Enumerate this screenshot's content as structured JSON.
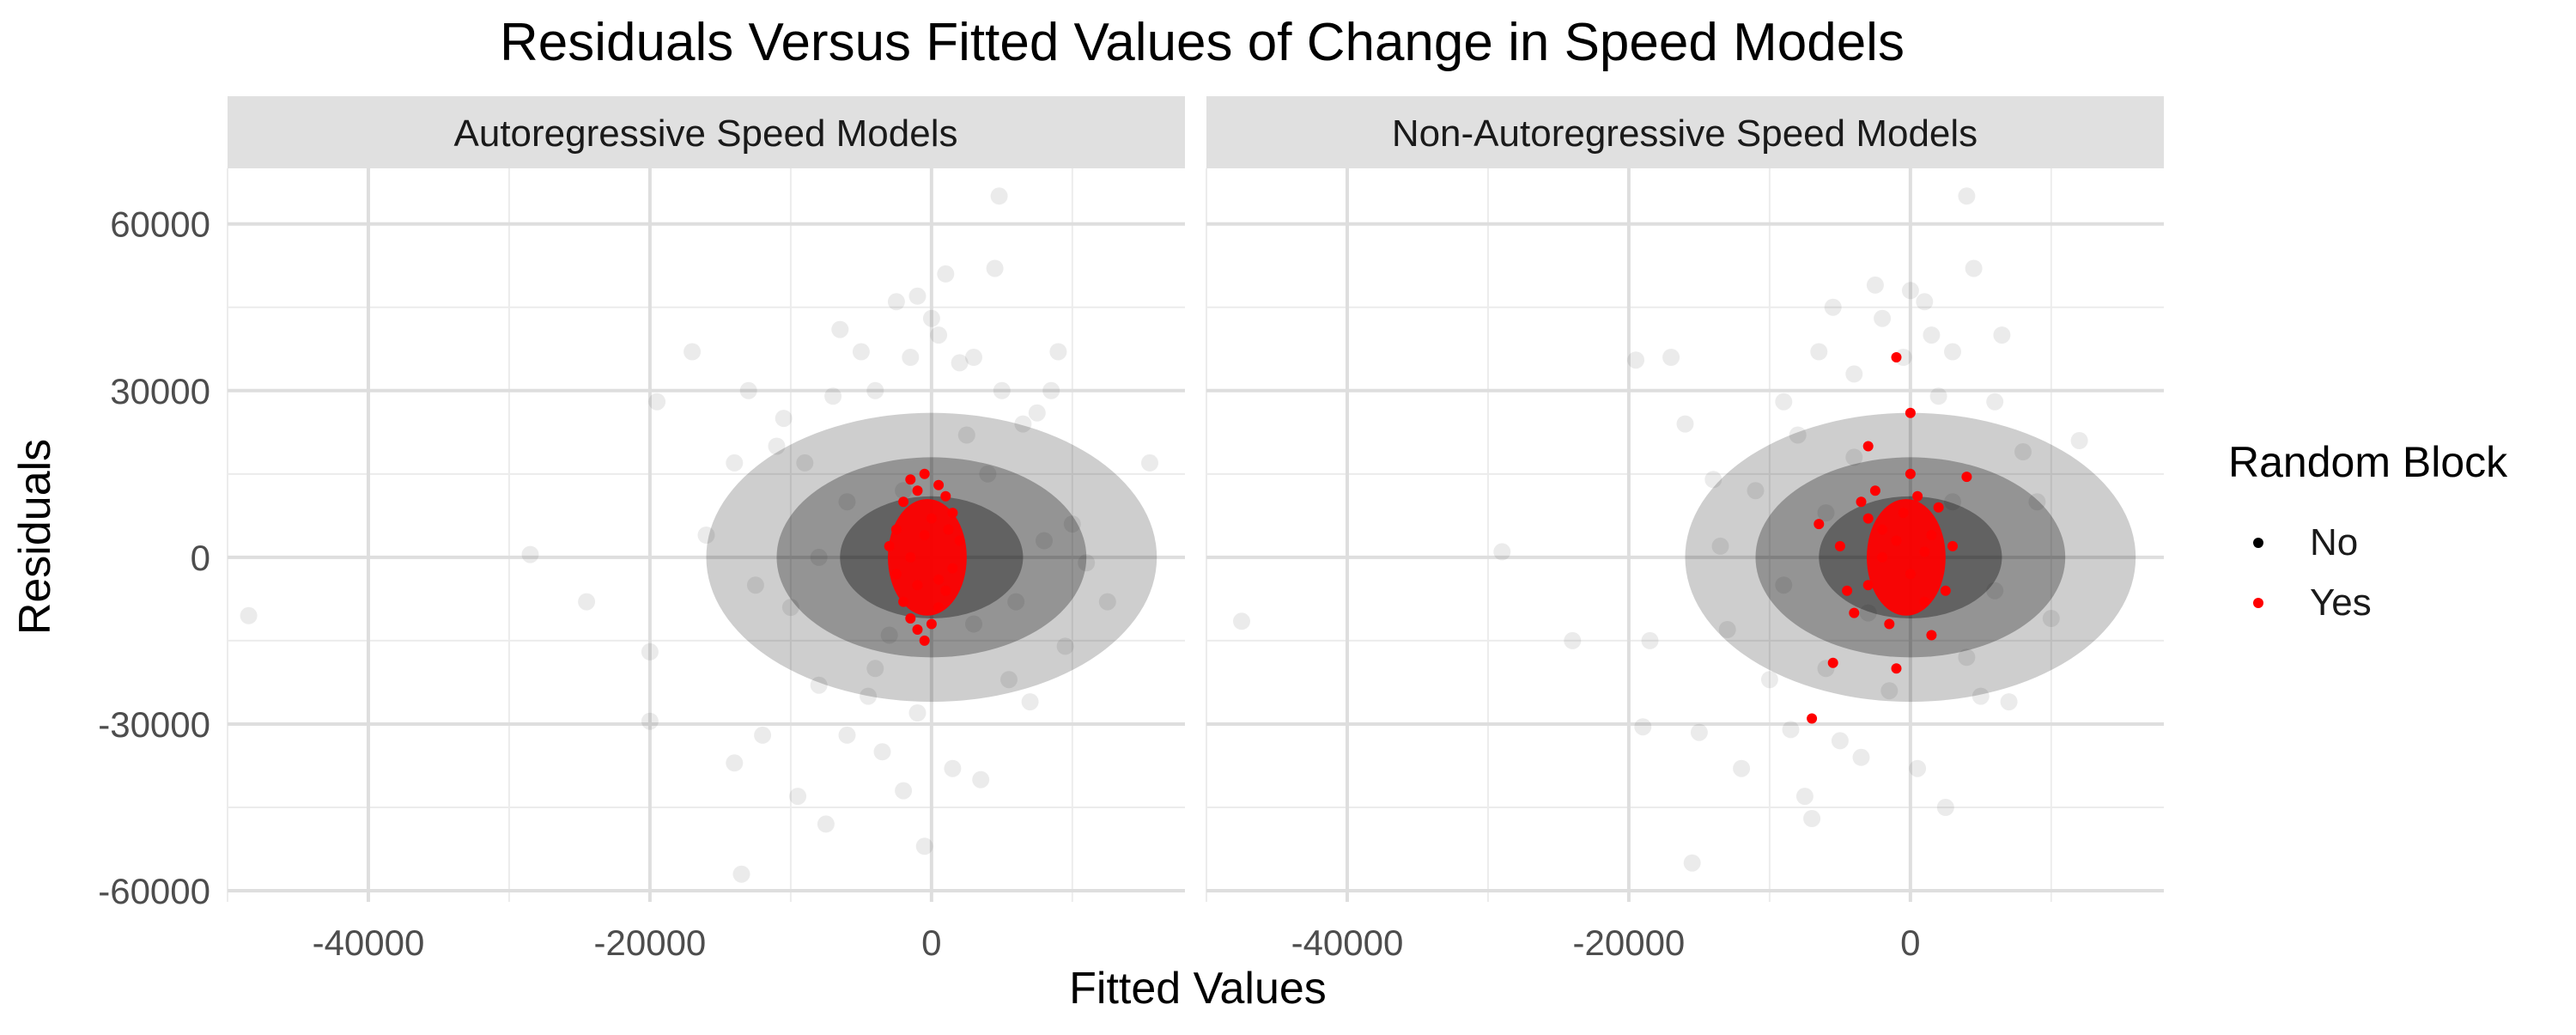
{
  "chart_data": {
    "type": "scatter",
    "title": "Residuals Versus Fitted Values of Change in Speed Models",
    "xlabel": "Fitted Values",
    "ylabel": "Residuals",
    "xlim": [
      -50000,
      18000
    ],
    "ylim": [
      -62000,
      70000
    ],
    "x_ticks": [
      -40000,
      -20000,
      0
    ],
    "x_tick_labels": [
      "-40000",
      "-20000",
      "0"
    ],
    "y_ticks": [
      -60000,
      -30000,
      0,
      30000,
      60000
    ],
    "y_tick_labels": [
      "-60000",
      "-30000",
      "0",
      "30000",
      "60000"
    ],
    "grid": true,
    "legend": {
      "title": "Random Block",
      "position": "right",
      "items": [
        {
          "label": "No",
          "color": "#000000"
        },
        {
          "label": "Yes",
          "color": "#ff0000"
        }
      ]
    },
    "panels": [
      {
        "title": "Autoregressive Speed Models",
        "series": [
          {
            "name": "No",
            "color": "#000000",
            "opacity": 0.08,
            "points": [
              [
                -48500,
                -10500
              ],
              [
                -28500,
                500
              ],
              [
                -24500,
                -8000
              ],
              [
                -20000,
                -29500
              ],
              [
                -20000,
                -17000
              ],
              [
                -19500,
                28000
              ],
              [
                -17000,
                37000
              ],
              [
                -16000,
                4000
              ],
              [
                -14000,
                17000
              ],
              [
                -14000,
                -37000
              ],
              [
                -13500,
                -57000
              ],
              [
                -13000,
                30000
              ],
              [
                -12500,
                -5000
              ],
              [
                -12000,
                -32000
              ],
              [
                -11000,
                20000
              ],
              [
                -10500,
                25000
              ],
              [
                -10000,
                -9000
              ],
              [
                -9500,
                -43000
              ],
              [
                -9000,
                17000
              ],
              [
                -8000,
                -23000
              ],
              [
                -7500,
                -48000
              ],
              [
                -7000,
                29000
              ],
              [
                -6500,
                41000
              ],
              [
                -6000,
                -32000
              ],
              [
                -5000,
                37000
              ],
              [
                -4500,
                -25000
              ],
              [
                -4000,
                30000
              ],
              [
                -3500,
                -35000
              ],
              [
                -2500,
                46000
              ],
              [
                -2000,
                -42000
              ],
              [
                -1500,
                36000
              ],
              [
                -1000,
                47000
              ],
              [
                -500,
                -52000
              ],
              [
                0,
                43000
              ],
              [
                500,
                40000
              ],
              [
                1000,
                51000
              ],
              [
                1500,
                -38000
              ],
              [
                2000,
                35000
              ],
              [
                3000,
                36000
              ],
              [
                3500,
                -40000
              ],
              [
                4500,
                52000
              ],
              [
                4800,
                65000
              ],
              [
                5000,
                30000
              ],
              [
                5500,
                -22000
              ],
              [
                6500,
                24000
              ],
              [
                7000,
                -26000
              ],
              [
                7500,
                26000
              ],
              [
                8500,
                30000
              ],
              [
                9000,
                37000
              ],
              [
                9500,
                -16000
              ],
              [
                10000,
                6000
              ],
              [
                11000,
                -1000
              ],
              [
                12500,
                -8000
              ],
              [
                15500,
                17000
              ],
              [
                -3000,
                -14000
              ],
              [
                -2000,
                12000
              ],
              [
                3000,
                -12000
              ],
              [
                -6000,
                10000
              ],
              [
                6000,
                -8000
              ],
              [
                -4000,
                -20000
              ],
              [
                2500,
                22000
              ],
              [
                4000,
                15000
              ],
              [
                -8000,
                0
              ],
              [
                8000,
                3000
              ],
              [
                -1000,
                -28000
              ]
            ]
          },
          {
            "name": "Yes",
            "color": "#ff0000",
            "opacity": 1,
            "points": [
              [
                -2000,
                10000
              ],
              [
                -1500,
                14000
              ],
              [
                -1000,
                12000
              ],
              [
                -500,
                15000
              ],
              [
                500,
                13000
              ],
              [
                1000,
                11000
              ],
              [
                1500,
                8000
              ],
              [
                -2500,
                5000
              ],
              [
                -3000,
                2000
              ],
              [
                -2500,
                -3000
              ],
              [
                -2000,
                -8000
              ],
              [
                -1500,
                -11000
              ],
              [
                -1000,
                -13000
              ],
              [
                -500,
                -15000
              ],
              [
                0,
                -12000
              ],
              [
                500,
                -9000
              ],
              [
                1000,
                -6000
              ],
              [
                1500,
                -2000
              ],
              [
                2000,
                3000
              ],
              [
                -1500,
                0
              ],
              [
                -500,
                4000
              ],
              [
                500,
                -4000
              ],
              [
                0,
                7000
              ],
              [
                -1000,
                -5000
              ],
              [
                1200,
                5000
              ]
            ]
          }
        ]
      },
      {
        "title": "Non-Autoregressive Speed Models",
        "series": [
          {
            "name": "No",
            "color": "#000000",
            "opacity": 0.08,
            "points": [
              [
                -47500,
                -11500
              ],
              [
                -29000,
                1000
              ],
              [
                -24000,
                -15000
              ],
              [
                -19500,
                35500
              ],
              [
                -19000,
                -30500
              ],
              [
                -18500,
                -15000
              ],
              [
                -17000,
                36000
              ],
              [
                -16000,
                24000
              ],
              [
                -15500,
                -55000
              ],
              [
                -15000,
                -31500
              ],
              [
                -14000,
                14000
              ],
              [
                -13500,
                2000
              ],
              [
                -13000,
                -13000
              ],
              [
                -12000,
                -38000
              ],
              [
                -11000,
                12000
              ],
              [
                -10000,
                -22000
              ],
              [
                -9000,
                28000
              ],
              [
                -8500,
                -31000
              ],
              [
                -8000,
                22000
              ],
              [
                -7500,
                -43000
              ],
              [
                -7000,
                -47000
              ],
              [
                -6500,
                37000
              ],
              [
                -6000,
                -20000
              ],
              [
                -5500,
                45000
              ],
              [
                -5000,
                -33000
              ],
              [
                -4000,
                33000
              ],
              [
                -3500,
                -36000
              ],
              [
                -2500,
                49000
              ],
              [
                -2000,
                43000
              ],
              [
                -1500,
                -24000
              ],
              [
                -500,
                36000
              ],
              [
                0,
                48000
              ],
              [
                500,
                -38000
              ],
              [
                1000,
                46000
              ],
              [
                1500,
                40000
              ],
              [
                2000,
                29000
              ],
              [
                2500,
                -45000
              ],
              [
                3000,
                37000
              ],
              [
                4000,
                65000
              ],
              [
                4500,
                52000
              ],
              [
                5000,
                -25000
              ],
              [
                6000,
                28000
              ],
              [
                6500,
                40000
              ],
              [
                7000,
                -26000
              ],
              [
                8000,
                19000
              ],
              [
                9000,
                10000
              ],
              [
                10000,
                -11000
              ],
              [
                12000,
                21000
              ],
              [
                -3000,
                -10000
              ],
              [
                3000,
                10000
              ],
              [
                -6000,
                8000
              ],
              [
                6000,
                -6000
              ],
              [
                -4000,
                18000
              ],
              [
                4000,
                -18000
              ],
              [
                -9000,
                -5000
              ]
            ]
          },
          {
            "name": "Yes",
            "color": "#ff0000",
            "opacity": 1,
            "points": [
              [
                -1000,
                36000
              ],
              [
                -3000,
                20000
              ],
              [
                0,
                26000
              ],
              [
                -5500,
                -19000
              ],
              [
                -7000,
                -29000
              ],
              [
                -6500,
                6000
              ],
              [
                -5000,
                2000
              ],
              [
                -4500,
                -6000
              ],
              [
                -4000,
                -10000
              ],
              [
                -3500,
                10000
              ],
              [
                -3000,
                -5000
              ],
              [
                -2500,
                12000
              ],
              [
                -2000,
                5000
              ],
              [
                -1500,
                -12000
              ],
              [
                -1000,
                -20000
              ],
              [
                -500,
                8000
              ],
              [
                0,
                -3000
              ],
              [
                500,
                11000
              ],
              [
                1000,
                -8000
              ],
              [
                1500,
                4000
              ],
              [
                2000,
                9000
              ],
              [
                2500,
                -6000
              ],
              [
                3000,
                2000
              ],
              [
                4000,
                14500
              ],
              [
                -2000,
                0
              ],
              [
                -1000,
                3000
              ],
              [
                1000,
                1000
              ],
              [
                -3000,
                7000
              ],
              [
                0,
                15000
              ],
              [
                1500,
                -14000
              ]
            ]
          }
        ]
      }
    ]
  }
}
